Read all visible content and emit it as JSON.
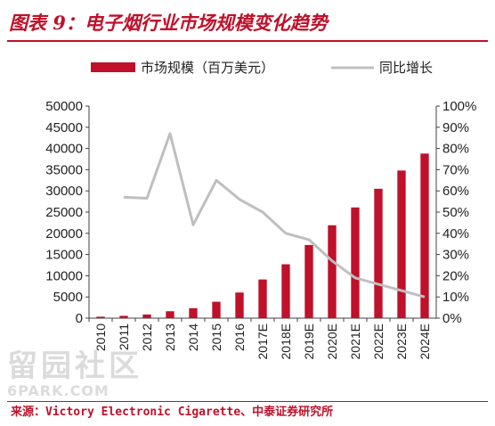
{
  "title": "图表 9：电子烟行业市场规模变化趋势",
  "source": "来源：Victory Electronic Cigarette、中泰证券研究所",
  "watermark": {
    "cn": "留园社区",
    "en": "6PARK.COM"
  },
  "colors": {
    "bar": "#c0102a",
    "line": "#bfbfbf",
    "accent": "#c0102a",
    "axis": "#404040"
  },
  "chart_data": {
    "type": "bar",
    "categories": [
      "2010",
      "2011",
      "2012",
      "2013",
      "2014",
      "2015",
      "2016",
      "2017E",
      "2018E",
      "2019E",
      "2020E",
      "2021E",
      "2022E",
      "2023E",
      "2024E"
    ],
    "series": [
      {
        "name": "市场规模（百万美元）",
        "type": "bar",
        "axis": "left",
        "values": [
          350,
          550,
          870,
          1630,
          2350,
          3870,
          6050,
          9120,
          12700,
          17250,
          21900,
          26100,
          30500,
          34800,
          38800
        ]
      },
      {
        "name": "同比增长",
        "type": "line",
        "axis": "right",
        "values": [
          null,
          0.57,
          0.565,
          0.87,
          0.44,
          0.65,
          0.56,
          0.5,
          0.4,
          0.37,
          0.27,
          0.19,
          0.16,
          0.13,
          0.1
        ]
      }
    ],
    "ylim_left": [
      0,
      50000
    ],
    "yticks_left": [
      "0",
      "5000",
      "10000",
      "15000",
      "20000",
      "25000",
      "30000",
      "35000",
      "40000",
      "45000",
      "50000"
    ],
    "ylim_right": [
      0,
      1
    ],
    "yticks_right": [
      "0%",
      "10%",
      "20%",
      "30%",
      "40%",
      "50%",
      "60%",
      "70%",
      "80%",
      "90%",
      "100%"
    ],
    "legend_position": "top",
    "grid": false
  }
}
